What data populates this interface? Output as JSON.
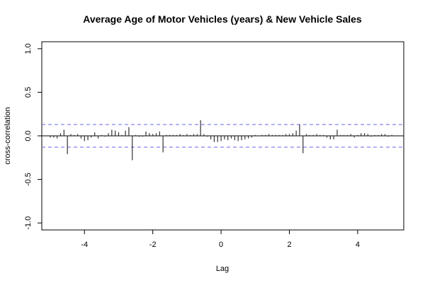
{
  "chart_data": {
    "type": "bar",
    "title": "Average Age of Motor Vehicles (years) & New Vehicle Sales",
    "xlabel": "Lag",
    "ylabel": "cross-correlation",
    "xlim": [
      -5.25,
      5.35
    ],
    "ylim": [
      -1.08,
      1.08
    ],
    "x_ticks": [
      -4,
      -2,
      0,
      2,
      4
    ],
    "x_tick_labels": [
      "-4",
      "-2",
      "0",
      "2",
      "4"
    ],
    "y_ticks": [
      -1.0,
      -0.5,
      0.0,
      0.5,
      1.0
    ],
    "y_tick_labels": [
      "-1.0",
      "-0.5",
      "0.0",
      "0.5",
      "1.0"
    ],
    "confidence_band": [
      -0.13,
      0.13
    ],
    "colors": {
      "bars": "#333333",
      "confidence_band": "#6666ee",
      "zero_line": "#000000"
    },
    "lags": [
      -5.0,
      -4.9,
      -4.8,
      -4.7,
      -4.6,
      -4.5,
      -4.4,
      -4.3,
      -4.2,
      -4.1,
      -4.0,
      -3.9,
      -3.8,
      -3.7,
      -3.6,
      -3.5,
      -3.4,
      -3.3,
      -3.2,
      -3.1,
      -3.0,
      -2.9,
      -2.8,
      -2.7,
      -2.6,
      -2.5,
      -2.4,
      -2.3,
      -2.2,
      -2.1,
      -2.0,
      -1.9,
      -1.8,
      -1.7,
      -1.6,
      -1.5,
      -1.4,
      -1.3,
      -1.2,
      -1.1,
      -1.0,
      -0.9,
      -0.8,
      -0.7,
      -0.6,
      -0.5,
      -0.4,
      -0.3,
      -0.2,
      -0.1,
      0.0,
      0.1,
      0.2,
      0.3,
      0.4,
      0.5,
      0.6,
      0.7,
      0.8,
      0.9,
      1.0,
      1.1,
      1.2,
      1.3,
      1.4,
      1.5,
      1.6,
      1.7,
      1.8,
      1.9,
      2.0,
      2.1,
      2.2,
      2.3,
      2.4,
      2.5,
      2.6,
      2.7,
      2.8,
      2.9,
      3.0,
      3.1,
      3.2,
      3.3,
      3.4,
      3.5,
      3.6,
      3.7,
      3.8,
      3.9,
      4.0,
      4.1,
      4.2,
      4.3,
      4.4,
      4.5,
      4.6,
      4.7,
      4.8,
      4.9,
      5.0
    ],
    "values": [
      -0.02,
      -0.02,
      -0.03,
      0.03,
      0.07,
      -0.21,
      0.02,
      0.01,
      0.02,
      -0.03,
      -0.06,
      -0.05,
      -0.02,
      0.04,
      -0.03,
      0.01,
      -0.01,
      0.03,
      0.07,
      0.06,
      0.04,
      0.01,
      0.06,
      0.1,
      -0.28,
      0.01,
      -0.01,
      -0.01,
      0.05,
      0.03,
      0.02,
      0.03,
      0.05,
      -0.19,
      0.01,
      0.01,
      0.01,
      0.01,
      0.02,
      0.01,
      0.02,
      0.01,
      0.02,
      0.02,
      0.18,
      0.02,
      -0.01,
      -0.04,
      -0.07,
      -0.07,
      -0.06,
      -0.04,
      -0.05,
      -0.03,
      -0.05,
      -0.06,
      -0.05,
      -0.04,
      -0.03,
      -0.02,
      0.01,
      0.0,
      0.01,
      0.01,
      0.02,
      0.01,
      0.01,
      0.01,
      0.01,
      0.02,
      0.02,
      0.03,
      0.06,
      0.13,
      -0.2,
      0.02,
      0.01,
      0.01,
      0.02,
      0.01,
      0.01,
      -0.02,
      -0.04,
      -0.04,
      0.07,
      0.01,
      0.01,
      0.01,
      0.02,
      -0.02,
      0.01,
      0.03,
      0.03,
      0.02,
      -0.01,
      0.01,
      0.01,
      0.02,
      0.02,
      -0.01,
      0.01
    ]
  }
}
